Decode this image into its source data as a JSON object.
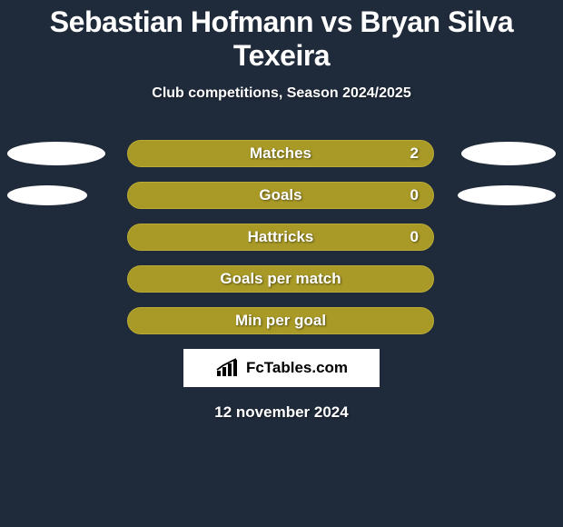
{
  "background_color": "#1f2a3a",
  "title": "Sebastian Hofmann vs Bryan Silva Texeira",
  "title_color": "#ffffff",
  "subtitle": "Club competitions, Season 2024/2025",
  "subtitle_color": "#ffffff",
  "bar_color": "#a99a27",
  "bar_outline_color": "#b8ab36",
  "ellipse_color": "#ffffff",
  "label_text_color": "#ffffff",
  "rows": [
    {
      "label": "Matches",
      "value": "2",
      "show_value": true,
      "left_ellipse": {
        "w": 108,
        "h": 26
      },
      "right_ellipse": {
        "w": 104,
        "h": 26
      }
    },
    {
      "label": "Goals",
      "value": "0",
      "show_value": true,
      "left_ellipse": {
        "w": 88,
        "h": 22
      },
      "right_ellipse": {
        "w": 108,
        "h": 22
      }
    },
    {
      "label": "Hattricks",
      "value": "0",
      "show_value": true,
      "left_ellipse": null,
      "right_ellipse": null
    },
    {
      "label": "Goals per match",
      "value": "",
      "show_value": false,
      "left_ellipse": null,
      "right_ellipse": null
    },
    {
      "label": "Min per goal",
      "value": "",
      "show_value": false,
      "left_ellipse": null,
      "right_ellipse": null
    }
  ],
  "logo": {
    "box_bg": "#ffffff",
    "text": "FcTables.com",
    "text_color": "#000000",
    "mark_color": "#000000"
  },
  "date": "12 november 2024",
  "date_color": "#ffffff"
}
